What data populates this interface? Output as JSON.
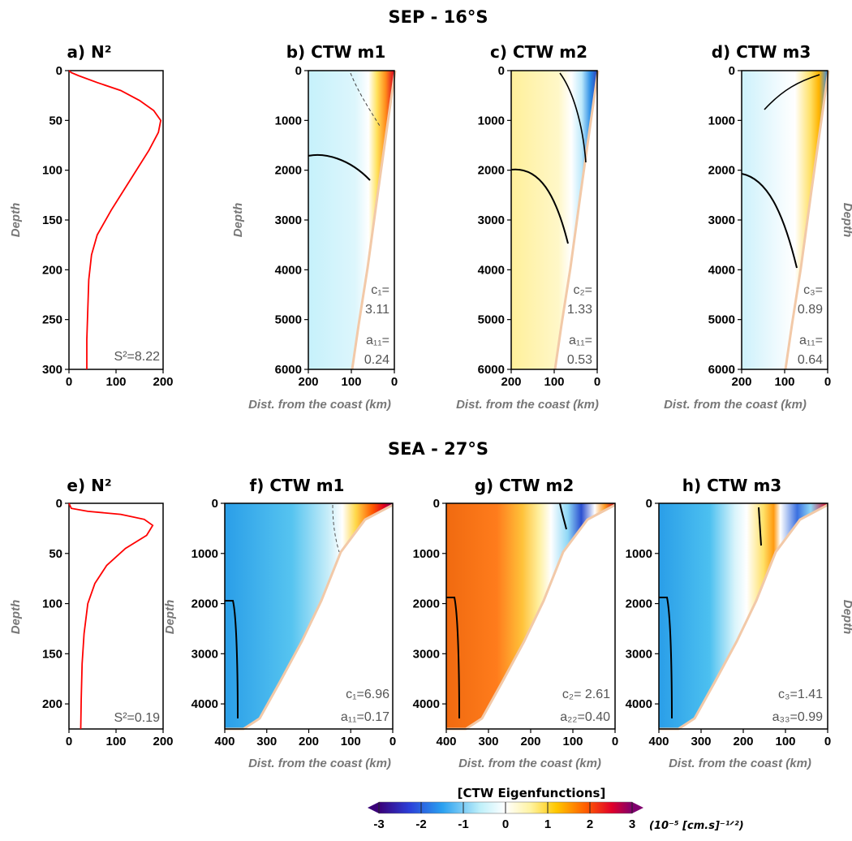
{
  "figure": {
    "row_titles": [
      "SEP - 16°S",
      "SEA - 27°S"
    ],
    "x_label": "Dist. from the coast (km)",
    "y_label": "Depth",
    "colorbar": {
      "title": "[CTW Eigenfunctions]",
      "units": "(10⁻⁵ [cm.s]⁻¹ᐟ²)",
      "ticks": [
        "-3",
        "-2",
        "-1",
        "0",
        "1",
        "2",
        "3"
      ],
      "min": -3,
      "max": 3
    }
  },
  "chart_data": [
    {
      "type": "line",
      "panel": "a",
      "title": "a) N²",
      "ylabel": "Depth",
      "annotation": "S²=8.22",
      "xlim": [
        0,
        200
      ],
      "ylim": [
        0,
        300
      ],
      "x_ticks": [
        "0",
        "100",
        "200"
      ],
      "y_ticks": [
        "0",
        "50",
        "100",
        "150",
        "200",
        "250",
        "300"
      ],
      "series": [
        {
          "color": "#ff0000",
          "x": [
            0,
            5,
            20,
            60,
            110,
            150,
            180,
            195,
            190,
            170,
            130,
            90,
            60,
            48,
            42,
            40,
            38,
            38
          ],
          "y": [
            0,
            2,
            5,
            12,
            20,
            30,
            40,
            50,
            62,
            80,
            110,
            140,
            165,
            185,
            210,
            240,
            270,
            300
          ]
        }
      ]
    },
    {
      "type": "line",
      "panel": "e",
      "title": "e) N²",
      "ylabel": "Depth",
      "annotation": "S²=0.19",
      "xlim": [
        0,
        200
      ],
      "ylim": [
        0,
        225
      ],
      "x_ticks": [
        "0",
        "100",
        "200"
      ],
      "y_ticks": [
        "0",
        "50",
        "100",
        "150",
        "200"
      ],
      "series": [
        {
          "color": "#ff0000",
          "x": [
            0,
            5,
            40,
            110,
            160,
            178,
            165,
            120,
            80,
            55,
            40,
            32,
            28,
            26,
            25
          ],
          "y": [
            0,
            5,
            8,
            11,
            16,
            22,
            32,
            45,
            62,
            80,
            100,
            130,
            160,
            195,
            225
          ]
        }
      ]
    },
    {
      "type": "heatmap",
      "panel": "b",
      "title": "b) CTW m1",
      "mode": 1,
      "c_label": "c₁=",
      "c_value": "3.11",
      "a_label": "a₁₁=",
      "a_value": "0.24",
      "xlim": [
        200,
        0
      ],
      "ylim": [
        0,
        6000
      ],
      "x_ticks": [
        "200",
        "100",
        "0"
      ],
      "y_ticks": [
        "0",
        "1000",
        "2000",
        "3000",
        "4000",
        "5000",
        "6000"
      ],
      "ylabel": "Depth"
    },
    {
      "type": "heatmap",
      "panel": "c",
      "title": "c) CTW m2",
      "mode": 2,
      "c_label": "c₂=",
      "c_value": "1.33",
      "a_label": "a₁₁=",
      "a_value": "0.53",
      "xlim": [
        200,
        0
      ],
      "ylim": [
        0,
        6000
      ],
      "x_ticks": [
        "200",
        "100",
        "0"
      ],
      "y_ticks": [
        "0",
        "1000",
        "2000",
        "3000",
        "4000",
        "5000",
        "6000"
      ],
      "ylabel": ""
    },
    {
      "type": "heatmap",
      "panel": "d",
      "title": "d) CTW m3",
      "mode": 3,
      "c_label": "c₃=",
      "c_value": "0.89",
      "a_label": "a₁₁=",
      "a_value": "0.64",
      "xlim": [
        200,
        0
      ],
      "ylim": [
        0,
        6000
      ],
      "x_ticks": [
        "200",
        "100",
        "0"
      ],
      "y_ticks": [
        "0",
        "1000",
        "2000",
        "3000",
        "4000",
        "5000",
        "6000"
      ],
      "ylabel": "Depth"
    },
    {
      "type": "heatmap",
      "panel": "f",
      "title": "f) CTW m1",
      "mode": 1,
      "c_text": "c₁=6.96",
      "a_text": "a₁₁=0.17",
      "xlim": [
        400,
        0
      ],
      "ylim": [
        0,
        4500
      ],
      "x_ticks": [
        "400",
        "300",
        "200",
        "100",
        "0"
      ],
      "y_ticks": [
        "0",
        "1000",
        "2000",
        "3000",
        "4000"
      ],
      "ylabel": "Depth"
    },
    {
      "type": "heatmap",
      "panel": "g",
      "title": "g) CTW m2",
      "mode": 2,
      "c_text": "c₂= 2.61",
      "a_text": "a₂₂=0.40",
      "xlim": [
        400,
        0
      ],
      "ylim": [
        0,
        4500
      ],
      "x_ticks": [
        "400",
        "300",
        "200",
        "100",
        "0"
      ],
      "y_ticks": [
        "0",
        "1000",
        "2000",
        "3000",
        "4000"
      ],
      "ylabel": ""
    },
    {
      "type": "heatmap",
      "panel": "h",
      "title": "h) CTW m3",
      "mode": 3,
      "c_text": "c₃=1.41",
      "a_text": "a₃₃=0.99",
      "xlim": [
        400,
        0
      ],
      "ylim": [
        0,
        4500
      ],
      "x_ticks": [
        "400",
        "300",
        "200",
        "100",
        "0"
      ],
      "y_ticks": [
        "0",
        "1000",
        "2000",
        "3000",
        "4000"
      ],
      "ylabel": "Depth"
    }
  ]
}
